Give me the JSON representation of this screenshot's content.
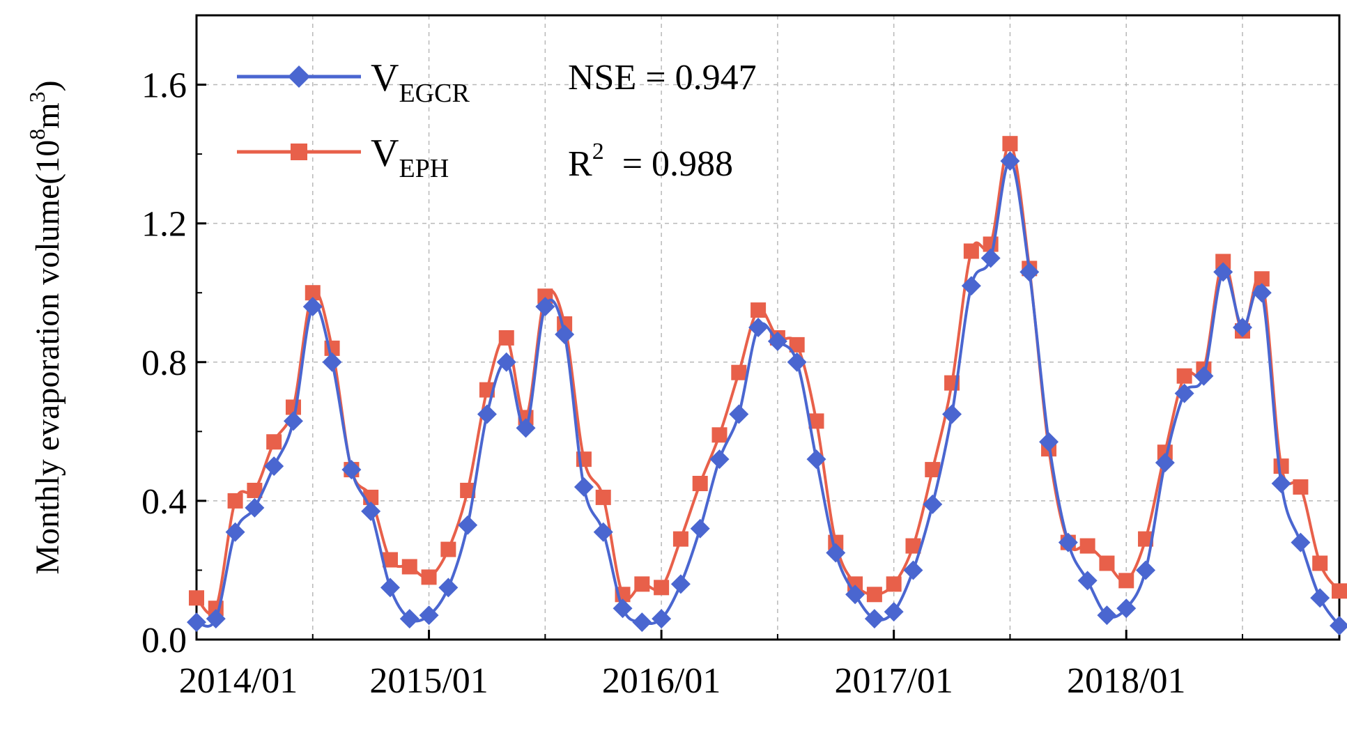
{
  "chart_data": {
    "type": "line",
    "title": "",
    "xlabel": "",
    "ylabel": "Monthly evaporation volume(10",
    "ylabel_exponent": "8",
    "ylabel_unit": "m",
    "ylabel_unit_exponent": "3",
    "ylabel_close": ")",
    "ylim": [
      0.0,
      1.8
    ],
    "yticks": [
      "0.0",
      "0.4",
      "0.8",
      "1.2",
      "1.6"
    ],
    "ytick_values": [
      0.0,
      0.4,
      0.8,
      1.2,
      1.6
    ],
    "xticks": [
      "2014/01",
      "2015/01",
      "2016/01",
      "2017/01",
      "2018/01"
    ],
    "xtick_positions": [
      0,
      12,
      24,
      36,
      48
    ],
    "xlim": [
      0,
      59
    ],
    "grid": true,
    "legend_position": "top-left",
    "series": [
      {
        "name": "V",
        "subscript": "EGCR",
        "color": "#4a66d0",
        "marker": "diamond",
        "values": [
          0.05,
          0.06,
          0.31,
          0.38,
          0.5,
          0.63,
          0.96,
          0.8,
          0.49,
          0.37,
          0.15,
          0.06,
          0.07,
          0.15,
          0.33,
          0.65,
          0.8,
          0.61,
          0.96,
          0.88,
          0.44,
          0.31,
          0.09,
          0.05,
          0.06,
          0.16,
          0.32,
          0.52,
          0.65,
          0.9,
          0.86,
          0.8,
          0.52,
          0.25,
          0.13,
          0.06,
          0.08,
          0.2,
          0.39,
          0.65,
          1.02,
          1.1,
          1.38,
          1.06,
          0.57,
          0.28,
          0.17,
          0.07,
          0.09,
          0.2,
          0.51,
          0.71,
          0.76,
          1.06,
          0.9,
          1.0,
          0.45,
          0.28,
          0.12,
          0.04
        ]
      },
      {
        "name": "V",
        "subscript": "EPH",
        "color": "#e8604a",
        "marker": "square",
        "values": [
          0.12,
          0.09,
          0.4,
          0.43,
          0.57,
          0.67,
          1.0,
          0.84,
          0.49,
          0.41,
          0.23,
          0.21,
          0.18,
          0.26,
          0.43,
          0.72,
          0.87,
          0.64,
          0.99,
          0.91,
          0.52,
          0.41,
          0.13,
          0.16,
          0.15,
          0.29,
          0.45,
          0.59,
          0.77,
          0.95,
          0.87,
          0.85,
          0.63,
          0.28,
          0.16,
          0.13,
          0.16,
          0.27,
          0.49,
          0.74,
          1.12,
          1.14,
          1.43,
          1.07,
          0.55,
          0.28,
          0.27,
          0.22,
          0.17,
          0.29,
          0.54,
          0.76,
          0.78,
          1.09,
          0.89,
          1.04,
          0.5,
          0.44,
          0.22,
          0.14
        ]
      }
    ],
    "annotations": [
      {
        "label": "NSE = 0.947"
      },
      {
        "label": "R",
        "sup": "2",
        "rest": "  = 0.988"
      }
    ]
  }
}
